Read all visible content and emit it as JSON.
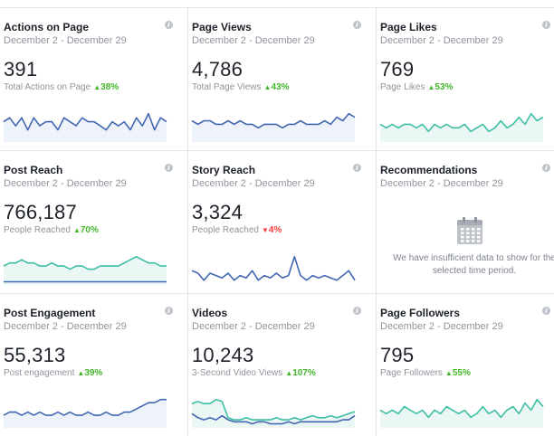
{
  "cards": [
    {
      "title": "Actions on Page",
      "date_range": "December 2 - December 29",
      "value": "391",
      "metric_label": "Total Actions on Page",
      "change": "38%",
      "direction": "up",
      "line_color": "#4267b2",
      "fill_color": "#eef2fb",
      "series": [
        5,
        6,
        4,
        6,
        3,
        6,
        4,
        5,
        5,
        3,
        6,
        5,
        4,
        6,
        5,
        5,
        4,
        3,
        5,
        4,
        5,
        3,
        6,
        4,
        7,
        3,
        6,
        5
      ]
    },
    {
      "title": "Page Views",
      "date_range": "December 2 - December 29",
      "value": "4,786",
      "metric_label": "Total Page Views",
      "change": "43%",
      "direction": "up",
      "line_color": "#4267b2",
      "fill_color": "#eef2fb",
      "series": [
        6,
        5,
        6,
        6,
        5,
        5,
        6,
        5,
        6,
        5,
        5,
        4,
        5,
        5,
        5,
        4,
        5,
        5,
        6,
        5,
        5,
        5,
        6,
        5,
        7,
        6,
        8,
        7
      ]
    },
    {
      "title": "Page Likes",
      "date_range": "December 2 - December 29",
      "value": "769",
      "metric_label": "Page Likes",
      "change": "53%",
      "direction": "up",
      "line_color": "#3dbfa5",
      "fill_color": "#ebf7f4",
      "series": [
        5,
        4,
        5,
        4,
        5,
        5,
        4,
        5,
        3,
        5,
        4,
        5,
        4,
        4,
        5,
        3,
        4,
        5,
        3,
        4,
        6,
        4,
        5,
        7,
        5,
        8,
        6,
        7
      ]
    },
    {
      "title": "Post Reach",
      "date_range": "December 2 - December 29",
      "value": "766,187",
      "metric_label": "People Reached",
      "change": "70%",
      "direction": "up",
      "line_color": "#3dbfa5",
      "fill_color": "#ebf7f4",
      "second_line_color": "#4267b2",
      "series": [
        6,
        7,
        7,
        8,
        7,
        7,
        6,
        6,
        7,
        6,
        6,
        5,
        6,
        6,
        5,
        5,
        6,
        6,
        6,
        6,
        7,
        8,
        9,
        8,
        7,
        7,
        6,
        6
      ],
      "second_series": [
        1,
        1,
        1,
        1,
        1,
        1,
        1,
        1,
        1,
        1,
        1,
        1,
        1,
        1,
        1,
        1,
        1,
        1,
        1,
        1,
        1,
        1,
        1,
        1,
        1,
        1,
        1,
        1
      ]
    },
    {
      "title": "Story Reach",
      "date_range": "December 2 - December 29",
      "value": "3,324",
      "metric_label": "People Reached",
      "change": "4%",
      "direction": "down",
      "line_color": "#4267b2",
      "fill_color": "none",
      "series": [
        6,
        5,
        2,
        5,
        4,
        3,
        5,
        2,
        4,
        3,
        6,
        2,
        4,
        3,
        5,
        3,
        4,
        12,
        4,
        2,
        4,
        3,
        4,
        3,
        2,
        4,
        6,
        2
      ]
    },
    {
      "title": "Recommendations",
      "date_range": "December 2 - December 29",
      "empty": true,
      "empty_message": "We have insufficient data to show for the selected time period."
    },
    {
      "title": "Post Engagement",
      "date_range": "December 2 - December 29",
      "value": "55,313",
      "metric_label": "Post engagement",
      "change": "39%",
      "direction": "up",
      "line_color": "#4267b2",
      "fill_color": "#eef2fb",
      "series": [
        4,
        5,
        5,
        4,
        5,
        4,
        5,
        4,
        4,
        5,
        4,
        5,
        4,
        4,
        5,
        4,
        4,
        5,
        4,
        4,
        5,
        5,
        6,
        7,
        8,
        8,
        9,
        9
      ]
    },
    {
      "title": "Videos",
      "date_range": "December 2 - December 29",
      "value": "10,243",
      "metric_label": "3-Second Video Views",
      "change": "107%",
      "direction": "up",
      "line_color": "#3dbfa5",
      "fill_color": "#ebf7f4",
      "second_line_color": "#4267b2",
      "series": [
        12,
        13,
        12,
        12,
        14,
        13,
        5,
        4,
        4,
        5,
        4,
        4,
        4,
        4,
        5,
        4,
        4,
        5,
        4,
        5,
        6,
        5,
        5,
        6,
        5,
        6,
        7,
        8
      ],
      "second_series": [
        7,
        5,
        4,
        5,
        4,
        6,
        4,
        3,
        3,
        3,
        2,
        3,
        3,
        2,
        2,
        2,
        3,
        2,
        3,
        3,
        3,
        3,
        3,
        3,
        3,
        4,
        4,
        6
      ]
    },
    {
      "title": "Page Followers",
      "date_range": "December 2 - December 29",
      "value": "795",
      "metric_label": "Page Followers",
      "change": "55%",
      "direction": "up",
      "line_color": "#3dbfa5",
      "fill_color": "#ebf7f4",
      "series": [
        5,
        4,
        5,
        4,
        6,
        5,
        4,
        5,
        3,
        5,
        4,
        6,
        5,
        4,
        5,
        3,
        4,
        6,
        4,
        5,
        3,
        5,
        6,
        4,
        7,
        5,
        8,
        6
      ]
    }
  ]
}
